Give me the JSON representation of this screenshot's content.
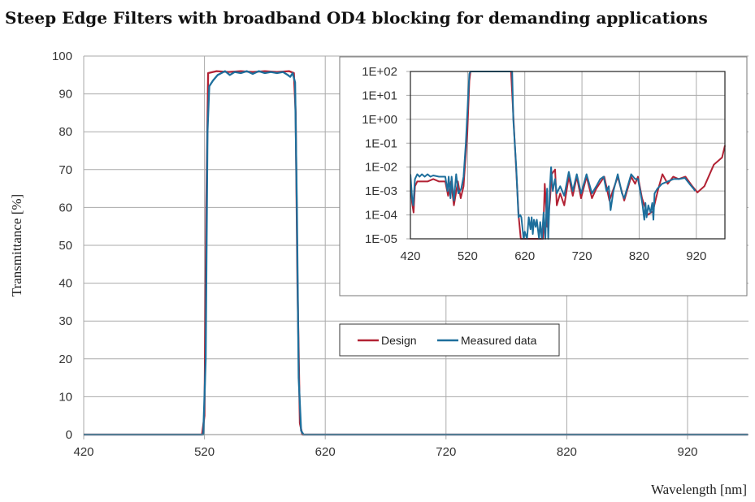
{
  "chart_data": [
    {
      "type": "line",
      "title": "Steep Edge Filters with broadband OD4 blocking for demanding applications",
      "xlabel": "Wavelength [nm]",
      "ylabel": "Transmittance [%]",
      "xlim": [
        420,
        970
      ],
      "ylim": [
        0,
        100
      ],
      "xticks": [
        420,
        520,
        620,
        720,
        820,
        920
      ],
      "yticks": [
        0,
        10,
        20,
        30,
        40,
        50,
        60,
        70,
        80,
        90,
        100
      ],
      "grid": true,
      "legend": {
        "placement": "center",
        "entries": [
          "Design",
          "Measured data"
        ]
      },
      "series": [
        {
          "name": "Design",
          "color": "#b22234",
          "points": [
            [
              420,
              0
            ],
            [
              518,
              0
            ],
            [
              520,
              5
            ],
            [
              521.5,
              60
            ],
            [
              523,
              95.5
            ],
            [
              530,
              96
            ],
            [
              540,
              95.8
            ],
            [
              550,
              96
            ],
            [
              560,
              95.8
            ],
            [
              570,
              96
            ],
            [
              580,
              95.8
            ],
            [
              590,
              96
            ],
            [
              594,
              95.5
            ],
            [
              595.5,
              85
            ],
            [
              597,
              40
            ],
            [
              599,
              3
            ],
            [
              601,
              0
            ],
            [
              970,
              0
            ]
          ]
        },
        {
          "name": "Measured data",
          "color": "#1e6f9c",
          "points": [
            [
              420,
              0
            ],
            [
              519,
              0
            ],
            [
              521,
              20
            ],
            [
              522.5,
              80
            ],
            [
              524,
              92
            ],
            [
              527,
              93.5
            ],
            [
              531,
              95
            ],
            [
              534,
              95.5
            ],
            [
              537,
              96
            ],
            [
              541,
              95
            ],
            [
              545,
              95.8
            ],
            [
              550,
              95.5
            ],
            [
              555,
              96
            ],
            [
              560,
              95.3
            ],
            [
              565,
              96
            ],
            [
              570,
              95.5
            ],
            [
              575,
              95.8
            ],
            [
              580,
              95.5
            ],
            [
              585,
              95.8
            ],
            [
              589,
              95
            ],
            [
              591,
              94.5
            ],
            [
              593,
              95.5
            ],
            [
              595,
              93
            ],
            [
              596.5,
              60
            ],
            [
              598,
              15
            ],
            [
              600,
              1
            ],
            [
              602,
              0
            ],
            [
              970,
              0
            ]
          ]
        }
      ]
    },
    {
      "type": "line",
      "title": "",
      "yscale": "log",
      "xlim": [
        420,
        970
      ],
      "ylim_log10": [
        -5,
        2
      ],
      "xticks": [
        420,
        520,
        620,
        720,
        820,
        920
      ],
      "yticks": [
        "1E+02",
        "1E+01",
        "1E+00",
        "1E-01",
        "1E-02",
        "1E-03",
        "1E-04",
        "1E-05"
      ],
      "grid": true,
      "series": [
        {
          "name": "Design",
          "color": "#b22234",
          "log10_points": [
            [
              420,
              -2.5
            ],
            [
              423,
              -3.5
            ],
            [
              425.5,
              -3.9
            ],
            [
              428,
              -2.8
            ],
            [
              432,
              -2.6
            ],
            [
              440,
              -2.6
            ],
            [
              450,
              -2.6
            ],
            [
              460,
              -2.5
            ],
            [
              470,
              -2.6
            ],
            [
              481,
              -2.6
            ],
            [
              486,
              -3.2
            ],
            [
              491,
              -2.6
            ],
            [
              496,
              -3.6
            ],
            [
              503,
              -2.6
            ],
            [
              508,
              -3.3
            ],
            [
              513,
              -2.8
            ],
            [
              515,
              -2.1
            ],
            [
              519.5,
              -0.6
            ],
            [
              523,
              1.6
            ],
            [
              525,
              2
            ],
            [
              596,
              2
            ],
            [
              602,
              -0.8
            ],
            [
              609.5,
              -4.1
            ],
            [
              613,
              -5
            ],
            [
              652,
              -5
            ],
            [
              655,
              -2.7
            ],
            [
              659.5,
              -4.5
            ],
            [
              664,
              -3.4
            ],
            [
              667,
              -2.3
            ],
            [
              673,
              -2.1
            ],
            [
              676,
              -3.6
            ],
            [
              682,
              -3.1
            ],
            [
              689,
              -3.6
            ],
            [
              697,
              -2.4
            ],
            [
              704,
              -3.2
            ],
            [
              711,
              -2.4
            ],
            [
              718.5,
              -3.3
            ],
            [
              728,
              -2.4
            ],
            [
              737.5,
              -3.3
            ],
            [
              745,
              -2.9
            ],
            [
              759,
              -2.4
            ],
            [
              768,
              -3.4
            ],
            [
              782.5,
              -2.4
            ],
            [
              794,
              -3.4
            ],
            [
              806,
              -2.4
            ],
            [
              813,
              -2.7
            ],
            [
              818,
              -2.4
            ],
            [
              825,
              -3.3
            ],
            [
              834.7,
              -4.0
            ],
            [
              844,
              -3.85
            ],
            [
              853.6,
              -2.9
            ],
            [
              860.7,
              -2.3
            ],
            [
              870,
              -2.7
            ],
            [
              879.7,
              -2.4
            ],
            [
              889,
              -2.5
            ],
            [
              901,
              -2.4
            ],
            [
              913,
              -2.8
            ],
            [
              922,
              -3.06
            ],
            [
              934,
              -2.8
            ],
            [
              950.5,
              -1.9
            ],
            [
              965,
              -1.6
            ],
            [
              970,
              -1.1
            ]
          ]
        },
        {
          "name": "Measured data",
          "color": "#1e6f9c",
          "log10_points": [
            [
              420,
              -2.3
            ],
            [
              423,
              -3.3
            ],
            [
              425,
              -3.6
            ],
            [
              428,
              -2.5
            ],
            [
              432,
              -2.3
            ],
            [
              436,
              -2.4
            ],
            [
              440,
              -2.3
            ],
            [
              445,
              -2.4
            ],
            [
              450,
              -2.3
            ],
            [
              455,
              -2.4
            ],
            [
              460,
              -2.35
            ],
            [
              470,
              -2.4
            ],
            [
              481,
              -2.4
            ],
            [
              485,
              -3
            ],
            [
              487,
              -2.4
            ],
            [
              490,
              -3.3
            ],
            [
              492,
              -2.4
            ],
            [
              496,
              -3.4
            ],
            [
              500,
              -2.3
            ],
            [
              504,
              -3.1
            ],
            [
              509,
              -2.9
            ],
            [
              513,
              -2.4
            ],
            [
              517,
              -1.0
            ],
            [
              520,
              0.5
            ],
            [
              523,
              1.9
            ],
            [
              525,
              2
            ],
            [
              598,
              2
            ],
            [
              600,
              0
            ],
            [
              605,
              -2
            ],
            [
              609,
              -4.1
            ],
            [
              612,
              -4.0
            ],
            [
              614,
              -4.1
            ],
            [
              618,
              -5
            ],
            [
              620,
              -4.7
            ],
            [
              624,
              -5
            ],
            [
              627,
              -4.1
            ],
            [
              630,
              -4.6
            ],
            [
              632,
              -4.1
            ],
            [
              634,
              -4.8
            ],
            [
              636,
              -4.2
            ],
            [
              639,
              -4.5
            ],
            [
              641,
              -4.2
            ],
            [
              645,
              -5
            ],
            [
              647,
              -4.3
            ],
            [
              650,
              -5
            ],
            [
              653,
              -3.9
            ],
            [
              656,
              -5
            ],
            [
              659,
              -2.9
            ],
            [
              661,
              -5
            ],
            [
              664,
              -2.8
            ],
            [
              666,
              -2.0
            ],
            [
              669,
              -3.0
            ],
            [
              673,
              -2.5
            ],
            [
              676,
              -3.1
            ],
            [
              682,
              -2.8
            ],
            [
              689,
              -3.2
            ],
            [
              697,
              -2.2
            ],
            [
              704,
              -3.0
            ],
            [
              711,
              -2.3
            ],
            [
              718.5,
              -3.1
            ],
            [
              728,
              -2.3
            ],
            [
              737.5,
              -3.1
            ],
            [
              745,
              -2.8
            ],
            [
              752,
              -2.5
            ],
            [
              758,
              -2.4
            ],
            [
              763,
              -3.0
            ],
            [
              767,
              -2.8
            ],
            [
              770,
              -3.8
            ],
            [
              775,
              -3.0
            ],
            [
              782.5,
              -2.3
            ],
            [
              790,
              -3.1
            ],
            [
              794,
              -3.3
            ],
            [
              806,
              -2.3
            ],
            [
              813,
              -2.5
            ],
            [
              818,
              -2.5
            ],
            [
              822,
              -3.0
            ],
            [
              826,
              -3.6
            ],
            [
              829,
              -4.2
            ],
            [
              831,
              -3.5
            ],
            [
              833,
              -4.1
            ],
            [
              836,
              -3.6
            ],
            [
              840,
              -3.9
            ],
            [
              843,
              -3.5
            ],
            [
              845,
              -4.2
            ],
            [
              847,
              -3.1
            ],
            [
              852,
              -2.9
            ],
            [
              860,
              -2.7
            ],
            [
              870,
              -2.6
            ],
            [
              880,
              -2.5
            ],
            [
              890,
              -2.5
            ],
            [
              900,
              -2.45
            ],
            [
              908,
              -2.7
            ],
            [
              915,
              -2.9
            ],
            [
              918,
              -3.0
            ]
          ]
        }
      ]
    }
  ]
}
